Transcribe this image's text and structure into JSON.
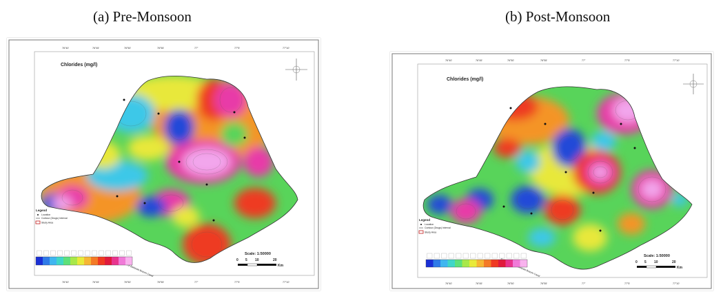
{
  "captions": {
    "left": "(a) Pre-Monsoon",
    "right": "(b) Post-Monsoon"
  },
  "maps": [
    {
      "id": "pre",
      "title": "Chlorides (mg/l)",
      "scale_text": "Scale: 1:50000",
      "scale_ticks": [
        "0",
        "5",
        "10",
        "20"
      ],
      "scale_unit": "Km",
      "legend_heading": "Legend",
      "legend_items": [
        "Location",
        "Contour (Drugs) Interval",
        "Study Area"
      ],
      "canal_label": "Sirhind Canal or Bathinda Branch Canal",
      "colorbar": [
        "#1a2fd6",
        "#2f7be8",
        "#3fb6f0",
        "#3fd6c8",
        "#5de07a",
        "#a8e84a",
        "#e8ea3a",
        "#f6b634",
        "#f47a26",
        "#ef3a22",
        "#e01a3c",
        "#e8348e",
        "#f07ad8",
        "#f9b2ee"
      ],
      "colors": {
        "blue": "#2448d8",
        "cyan": "#3ec8e8",
        "green": "#58d45a",
        "yellow": "#e8e83a",
        "orange": "#f49428",
        "red": "#ee3a22",
        "magenta": "#e83aa8",
        "pink": "#f2a6ec"
      }
    },
    {
      "id": "post",
      "title": "Chlorides (mg/l)",
      "scale_text": "Scale: 1:50000",
      "scale_ticks": [
        "0",
        "5",
        "10",
        "20"
      ],
      "scale_unit": "Km",
      "legend_heading": "Legend",
      "legend_items": [
        "Location",
        "Contour (Drugs) Interval",
        "Study Area"
      ],
      "canal_label": "Sirhind Canal or Bathinda Branch Canal",
      "colorbar": [
        "#1a2fd6",
        "#2f7be8",
        "#3fb6f0",
        "#3fd6c8",
        "#5de07a",
        "#a8e84a",
        "#e8ea3a",
        "#f6b634",
        "#f47a26",
        "#ef3a22",
        "#e01a3c",
        "#e8348e",
        "#f07ad8",
        "#f9b2ee"
      ],
      "colors": {
        "blue": "#2448d8",
        "cyan": "#3ec8e8",
        "green": "#58d45a",
        "yellow": "#e8e83a",
        "orange": "#f49428",
        "red": "#ee3a22",
        "magenta": "#e83aa8",
        "pink": "#f2a6ec"
      }
    }
  ]
}
